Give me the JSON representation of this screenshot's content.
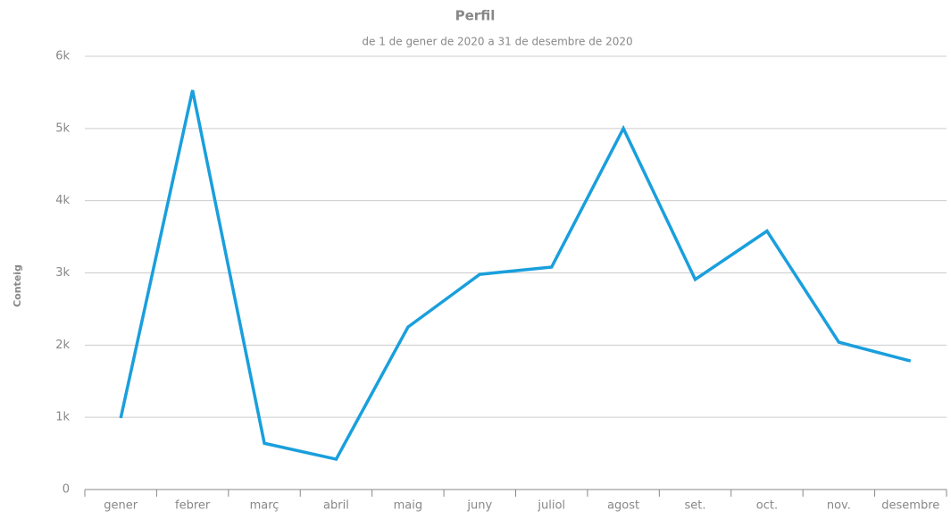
{
  "chart_data": {
    "type": "line",
    "title": "Perfil",
    "subtitle": "de 1 de gener de 2020 a 31 de desembre de 2020",
    "y_label": "Conteig",
    "categories": [
      "gener",
      "febrer",
      "març",
      "abril",
      "maig",
      "juny",
      "juliol",
      "agost",
      "set.",
      "oct.",
      "nov.",
      "desembre"
    ],
    "series": [
      {
        "name": "Conteig",
        "color": "#1a9fdc",
        "values": [
          990,
          5530,
          640,
          420,
          2250,
          2980,
          3080,
          5000,
          2910,
          3580,
          2040,
          1780
        ]
      }
    ],
    "ylim": [
      0,
      6000
    ],
    "yticks": [
      0,
      {
        "value": 1000,
        "label": "1k"
      },
      {
        "value": 2000,
        "label": "2k"
      },
      {
        "value": 3000,
        "label": "3k"
      },
      {
        "value": 4000,
        "label": "4k"
      },
      {
        "value": 5000,
        "label": "5k"
      },
      {
        "value": 6000,
        "label": "6k"
      }
    ],
    "grid": true
  }
}
